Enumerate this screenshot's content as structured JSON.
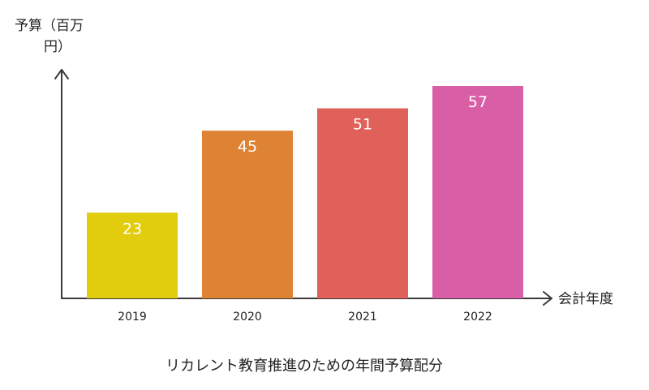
{
  "chart_data": {
    "type": "bar",
    "title": "リカレント教育推進のための年間予算配分",
    "xlabel": "会計年度",
    "ylabel_line1": "予算（百万",
    "ylabel_line2": "円）",
    "categories": [
      "2019",
      "2020",
      "2021",
      "2022"
    ],
    "values": [
      23,
      45,
      51,
      57
    ],
    "colors": [
      "#e2cc0e",
      "#dd8333",
      "#e0605a",
      "#d85ea6"
    ],
    "data_labels": [
      "23",
      "45",
      "51",
      "57"
    ],
    "ylim": [
      0,
      57
    ],
    "grid": false,
    "legend": "none"
  }
}
